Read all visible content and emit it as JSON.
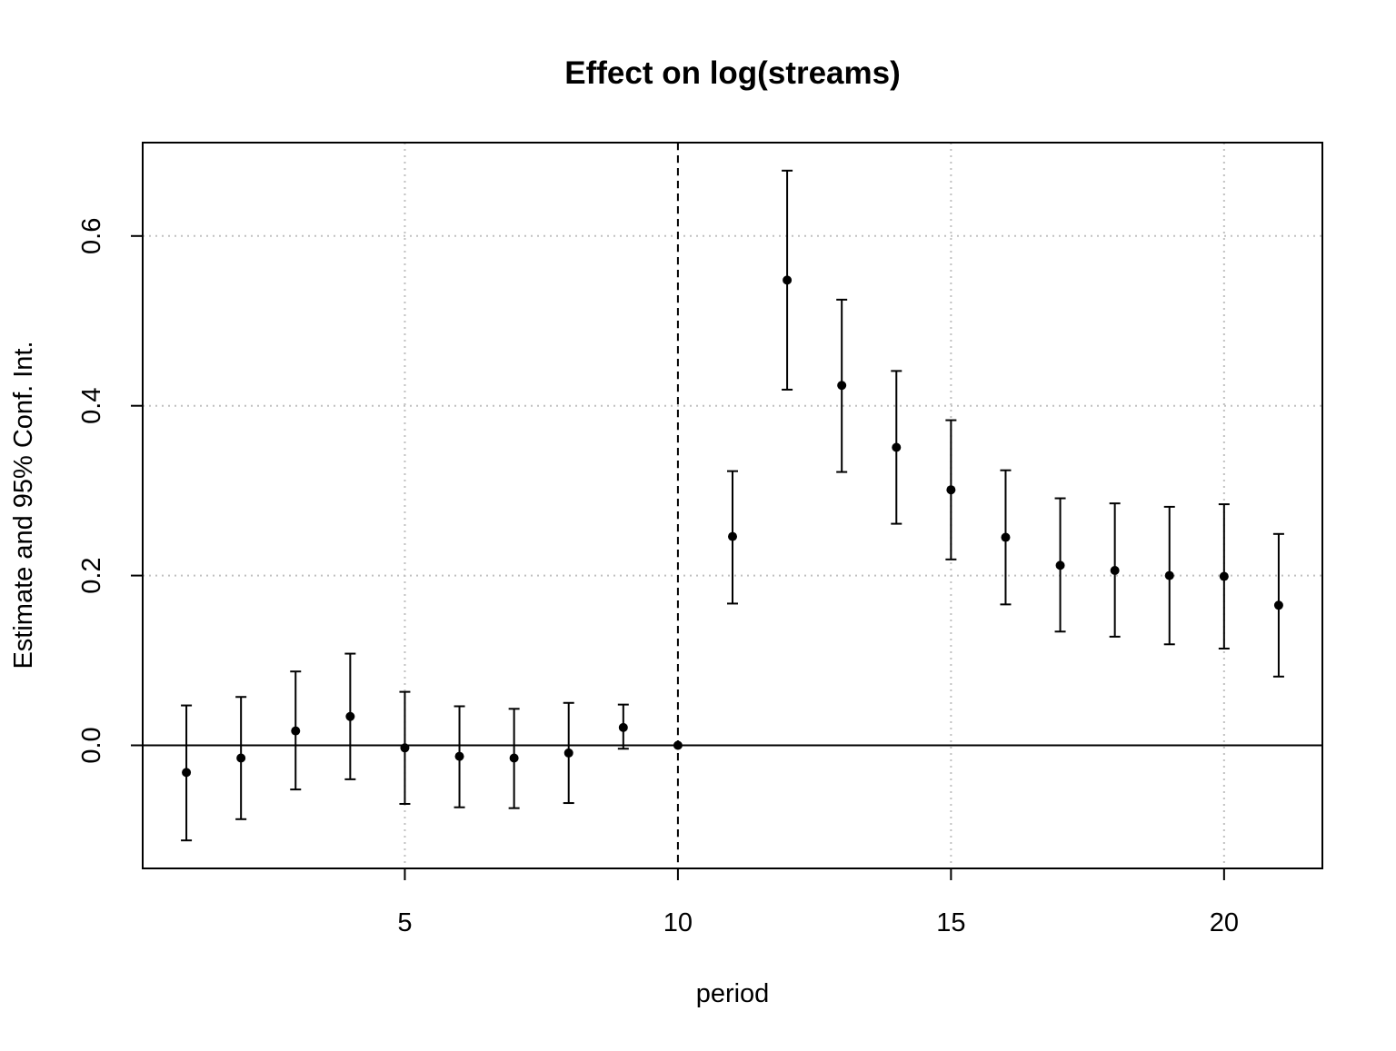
{
  "chart_data": {
    "type": "scatter",
    "title": "Effect on log(streams)",
    "xlabel": "period",
    "ylabel": "Estimate and 95% Conf. Int.",
    "xlim": [
      0.2,
      21.8
    ],
    "ylim": [
      -0.145,
      0.71
    ],
    "x_ticks": [
      5,
      10,
      15,
      20
    ],
    "x_tick_labels": [
      "5",
      "10",
      "15",
      "20"
    ],
    "y_ticks": [
      0.0,
      0.2,
      0.4,
      0.6
    ],
    "y_tick_labels": [
      "0.0",
      "0.2",
      "0.4",
      "0.6"
    ],
    "grid": true,
    "reference_period": 10,
    "zero_line": 0,
    "series": [
      {
        "points": [
          {
            "x": 1,
            "estimate": -0.032,
            "lower": -0.112,
            "upper": 0.047
          },
          {
            "x": 2,
            "estimate": -0.015,
            "lower": -0.087,
            "upper": 0.057
          },
          {
            "x": 3,
            "estimate": 0.017,
            "lower": -0.052,
            "upper": 0.087
          },
          {
            "x": 4,
            "estimate": 0.034,
            "lower": -0.04,
            "upper": 0.108
          },
          {
            "x": 5,
            "estimate": -0.003,
            "lower": -0.069,
            "upper": 0.063
          },
          {
            "x": 6,
            "estimate": -0.013,
            "lower": -0.073,
            "upper": 0.046
          },
          {
            "x": 7,
            "estimate": -0.015,
            "lower": -0.074,
            "upper": 0.043
          },
          {
            "x": 8,
            "estimate": -0.009,
            "lower": -0.068,
            "upper": 0.05
          },
          {
            "x": 9,
            "estimate": 0.021,
            "lower": -0.004,
            "upper": 0.048
          },
          {
            "x": 10,
            "estimate": 0.0,
            "lower": 0.0,
            "upper": 0.0
          },
          {
            "x": 11,
            "estimate": 0.246,
            "lower": 0.167,
            "upper": 0.323
          },
          {
            "x": 12,
            "estimate": 0.548,
            "lower": 0.419,
            "upper": 0.677
          },
          {
            "x": 13,
            "estimate": 0.424,
            "lower": 0.322,
            "upper": 0.525
          },
          {
            "x": 14,
            "estimate": 0.351,
            "lower": 0.261,
            "upper": 0.441
          },
          {
            "x": 15,
            "estimate": 0.301,
            "lower": 0.219,
            "upper": 0.383
          },
          {
            "x": 16,
            "estimate": 0.245,
            "lower": 0.166,
            "upper": 0.324
          },
          {
            "x": 17,
            "estimate": 0.212,
            "lower": 0.134,
            "upper": 0.291
          },
          {
            "x": 18,
            "estimate": 0.206,
            "lower": 0.128,
            "upper": 0.285
          },
          {
            "x": 19,
            "estimate": 0.2,
            "lower": 0.119,
            "upper": 0.281
          },
          {
            "x": 20,
            "estimate": 0.199,
            "lower": 0.114,
            "upper": 0.284
          },
          {
            "x": 21,
            "estimate": 0.165,
            "lower": 0.081,
            "upper": 0.249
          }
        ]
      }
    ],
    "colors": {
      "points": "#000000",
      "grid": "#c0c0c0",
      "frame": "#000000"
    }
  }
}
